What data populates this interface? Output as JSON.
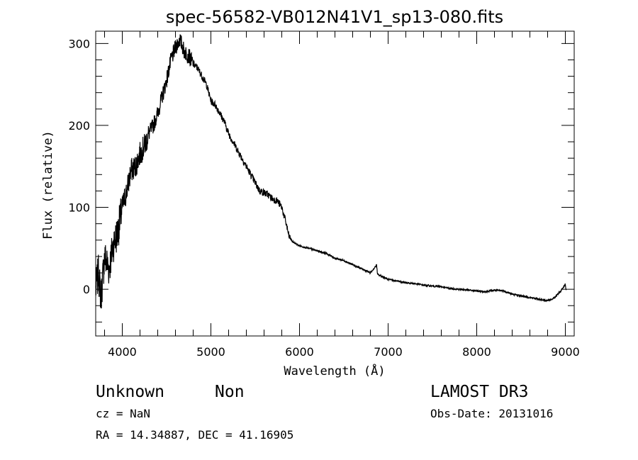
{
  "chart_data": {
    "type": "line",
    "title": "spec-56582-VB012N41V1_sp13-080.fits",
    "xlabel": "Wavelength (Å)",
    "ylabel": "Flux (relative)",
    "xlim": [
      3700,
      9100
    ],
    "ylim": [
      -57,
      315
    ],
    "x_ticks": [
      4000,
      5000,
      6000,
      7000,
      8000,
      9000
    ],
    "y_ticks": [
      0,
      100,
      200,
      300
    ],
    "grid": false,
    "series": [
      {
        "x": [
          3700,
          3730,
          3760,
          3800,
          3850,
          3900,
          3950,
          4000,
          4050,
          4100,
          4150,
          4200,
          4250,
          4300,
          4350,
          4400,
          4450,
          4500,
          4550,
          4600,
          4650,
          4700,
          4750,
          4800,
          4850,
          4900,
          4950,
          5000,
          5050,
          5100,
          5150,
          5200,
          5250,
          5300,
          5350,
          5400,
          5450,
          5500,
          5550,
          5600,
          5650,
          5700,
          5750,
          5800,
          5850,
          5880,
          5920,
          6000,
          6100,
          6200,
          6300,
          6400,
          6500,
          6600,
          6700,
          6800,
          6860,
          6870,
          6880,
          6950,
          7000,
          7100,
          7200,
          7300,
          7400,
          7500,
          7600,
          7700,
          7800,
          7900,
          8000,
          8100,
          8200,
          8300,
          8400,
          8500,
          8600,
          8700,
          8750,
          8800,
          8850,
          8900,
          8950,
          8980,
          9000,
          9010
        ],
        "y": [
          0,
          20,
          -10,
          40,
          25,
          55,
          70,
          100,
          120,
          145,
          150,
          165,
          175,
          190,
          200,
          215,
          235,
          255,
          280,
          295,
          305,
          290,
          285,
          275,
          270,
          260,
          250,
          230,
          225,
          215,
          205,
          190,
          180,
          170,
          160,
          150,
          140,
          130,
          120,
          118,
          115,
          110,
          108,
          100,
          80,
          65,
          58,
          53,
          50,
          47,
          44,
          38,
          35,
          30,
          25,
          20,
          28,
          30,
          18,
          15,
          12,
          10,
          8,
          7,
          5,
          4,
          3,
          1,
          0,
          -1,
          -2,
          -3,
          -1,
          -2,
          -6,
          -8,
          -10,
          -12,
          -13,
          -14,
          -12,
          -8,
          -2,
          3,
          6,
          -2
        ]
      }
    ],
    "annotations": {
      "class_label": "Unknown",
      "subclass_label": "Non",
      "cz": "cz = NaN",
      "radec": "RA =  14.34887, DEC =  41.16905",
      "survey": "LAMOST DR3",
      "obs_date": "Obs-Date: 20131016"
    }
  }
}
